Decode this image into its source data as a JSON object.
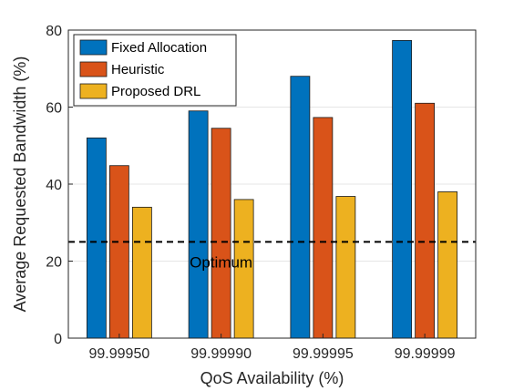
{
  "chart_data": {
    "type": "bar",
    "categories": [
      "99.99950",
      "99.99990",
      "99.99995",
      "99.99999"
    ],
    "series": [
      {
        "name": "Fixed Allocation",
        "color": "#0072BD",
        "values": [
          52,
          59,
          68,
          77.3
        ]
      },
      {
        "name": "Heuristic",
        "color": "#D95319",
        "values": [
          44.8,
          54.5,
          57.3,
          61
        ]
      },
      {
        "name": "Proposed DRL",
        "color": "#EDB120",
        "values": [
          34,
          36,
          36.8,
          38
        ]
      }
    ],
    "xlabel": "QoS Availability (%)",
    "ylabel": "Average Requested Bandwidth (%)",
    "ylim": [
      0,
      80
    ],
    "yticks": [
      0,
      20,
      40,
      60,
      80
    ],
    "grid": "y",
    "legend": "top-left",
    "reference_line": {
      "label": "Optimum",
      "value": 25,
      "style": "dashed",
      "color": "#000000"
    }
  }
}
